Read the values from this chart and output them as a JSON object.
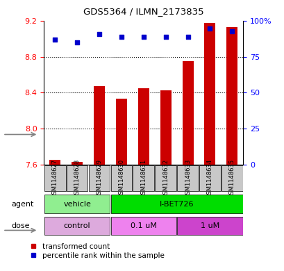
{
  "title": "GDS5364 / ILMN_2173835",
  "samples": [
    "GSM1148627",
    "GSM1148628",
    "GSM1148629",
    "GSM1148630",
    "GSM1148631",
    "GSM1148632",
    "GSM1148633",
    "GSM1148634",
    "GSM1148635"
  ],
  "bar_values": [
    7.65,
    7.63,
    8.47,
    8.33,
    8.45,
    8.43,
    8.75,
    9.18,
    9.13
  ],
  "bar_base": 7.6,
  "dot_values_pct": [
    87,
    85,
    91,
    89,
    89,
    89,
    89,
    95,
    93
  ],
  "ylim": [
    7.6,
    9.2
  ],
  "y2lim": [
    0,
    100
  ],
  "y_ticks": [
    7.6,
    8.0,
    8.4,
    8.8,
    9.2
  ],
  "y2_ticks": [
    0,
    25,
    50,
    75,
    100
  ],
  "bar_color": "#cc0000",
  "dot_color": "#0000cc",
  "legend_red": "transformed count",
  "legend_blue": "percentile rank within the sample",
  "xlabel_agent": "agent",
  "xlabel_dose": "dose",
  "agent_boxes": [
    {
      "label": "vehicle",
      "xmin": -0.48,
      "xmax": 2.48,
      "color": "#90EE90"
    },
    {
      "label": "I-BET726",
      "xmin": 2.52,
      "xmax": 8.48,
      "color": "#00DD00"
    }
  ],
  "dose_boxes": [
    {
      "label": "control",
      "xmin": -0.48,
      "xmax": 2.48,
      "color": "#DDAADD"
    },
    {
      "label": "0.1 uM",
      "xmin": 2.52,
      "xmax": 5.48,
      "color": "#EE82EE"
    },
    {
      "label": "1 uM",
      "xmin": 5.52,
      "xmax": 8.48,
      "color": "#CC44CC"
    }
  ],
  "sample_box_color": "#c8c8c8"
}
